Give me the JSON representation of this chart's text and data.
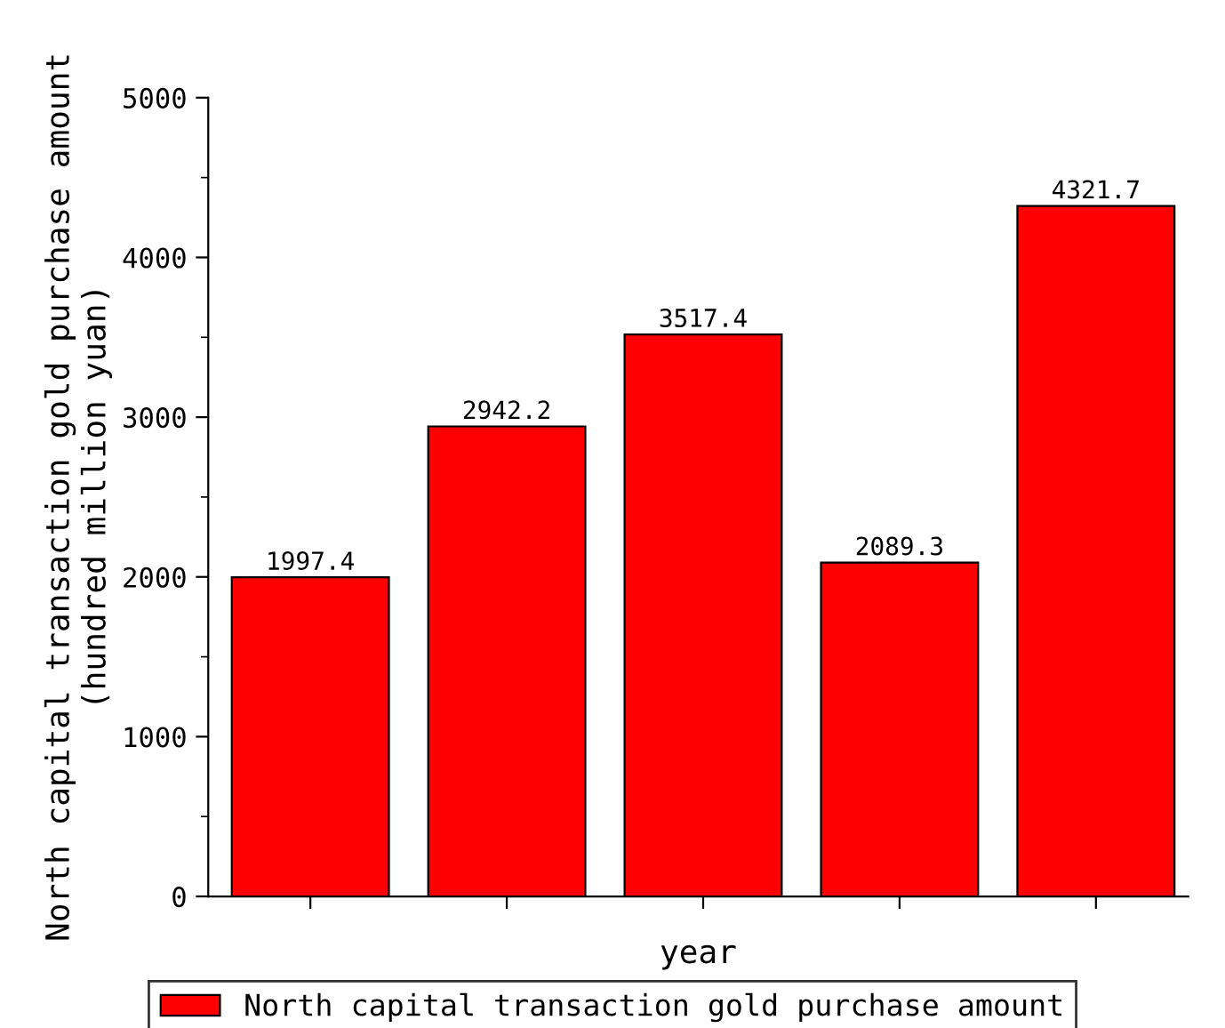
{
  "chart_data": {
    "type": "bar",
    "xlabel": "year",
    "ylabel": "North capital transaction gold purchase amount\n(hundred million yuan)",
    "categories": [
      null,
      null,
      null,
      null,
      null
    ],
    "series": [
      {
        "name": "North capital transaction gold purchase amount",
        "color": "#ff0000",
        "values": [
          1997.4,
          2942.2,
          3517.4,
          2089.3,
          4321.7
        ]
      }
    ],
    "ylim": [
      0,
      5000
    ],
    "yticks": [
      0,
      1000,
      2000,
      3000,
      4000,
      5000
    ],
    "data_labels": true,
    "tick_labels": "y",
    "legend": "bottom",
    "grid": false
  }
}
